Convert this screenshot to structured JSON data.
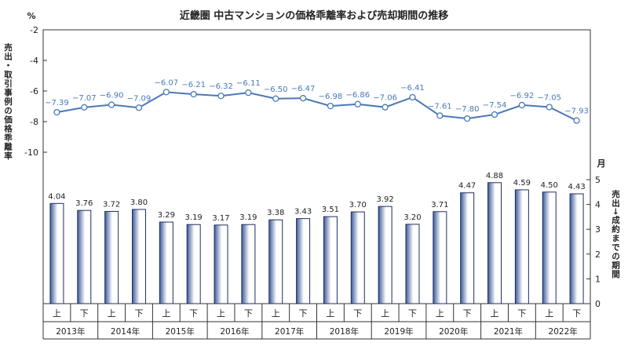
{
  "chart_data": {
    "type": "bar+line",
    "title": "近畿圏 中古マンションの価格乖離率および売却期間の推移",
    "left_unit": "%",
    "left_axis_label": "売出・取引事例の価格乖離率",
    "left_ticks": [
      "-2",
      "-4",
      "-6",
      "-8",
      "-10"
    ],
    "right_unit": "月",
    "right_axis_label": "売出→成約までの期間",
    "right_ticks": [
      "0",
      "1",
      "2",
      "3",
      "4",
      "5"
    ],
    "half_labels": [
      "上",
      "下"
    ],
    "years": [
      "2013年",
      "2014年",
      "2015年",
      "2016年",
      "2017年",
      "2018年",
      "2019年",
      "2020年",
      "2021年",
      "2022年"
    ],
    "line_series": {
      "values": [
        -7.39,
        -7.07,
        -6.9,
        -7.09,
        -6.07,
        -6.21,
        -6.32,
        -6.11,
        -6.5,
        -6.47,
        -6.98,
        -6.86,
        -7.06,
        -6.41,
        -7.61,
        -7.8,
        -7.54,
        -6.92,
        -7.05,
        -7.93
      ],
      "labels": [
        "−7.39",
        "−7.07",
        "−6.90",
        "−7.09",
        "−6.07",
        "−6.21",
        "−6.32",
        "−6.11",
        "−6.50",
        "−6.47",
        "−6.98",
        "−6.86",
        "−7.06",
        "−6.41",
        "−7.61",
        "−7.80",
        "−7.54",
        "−6.92",
        "−7.05",
        "−7.93"
      ],
      "ylim": [
        -10,
        -2
      ]
    },
    "bar_series": {
      "values": [
        4.04,
        3.76,
        3.72,
        3.8,
        3.29,
        3.19,
        3.17,
        3.19,
        3.38,
        3.43,
        3.51,
        3.7,
        3.92,
        3.2,
        3.71,
        4.47,
        4.88,
        4.59,
        4.5,
        4.43
      ],
      "labels": [
        "4.04",
        "3.76",
        "3.72",
        "3.80",
        "3.29",
        "3.19",
        "3.17",
        "3.19",
        "3.38",
        "3.43",
        "3.51",
        "3.70",
        "3.92",
        "3.20",
        "3.71",
        "4.47",
        "4.88",
        "4.59",
        "4.50",
        "4.43"
      ],
      "ylim": [
        0,
        5
      ]
    },
    "colors": {
      "line": "#4a78b8",
      "line_label": "#4a78b8",
      "bar_fill_dark": "#3d5a9a",
      "bar_fill_light": "#ffffff",
      "bar_stroke": "#1f2f5e",
      "frame": "#333333"
    }
  }
}
